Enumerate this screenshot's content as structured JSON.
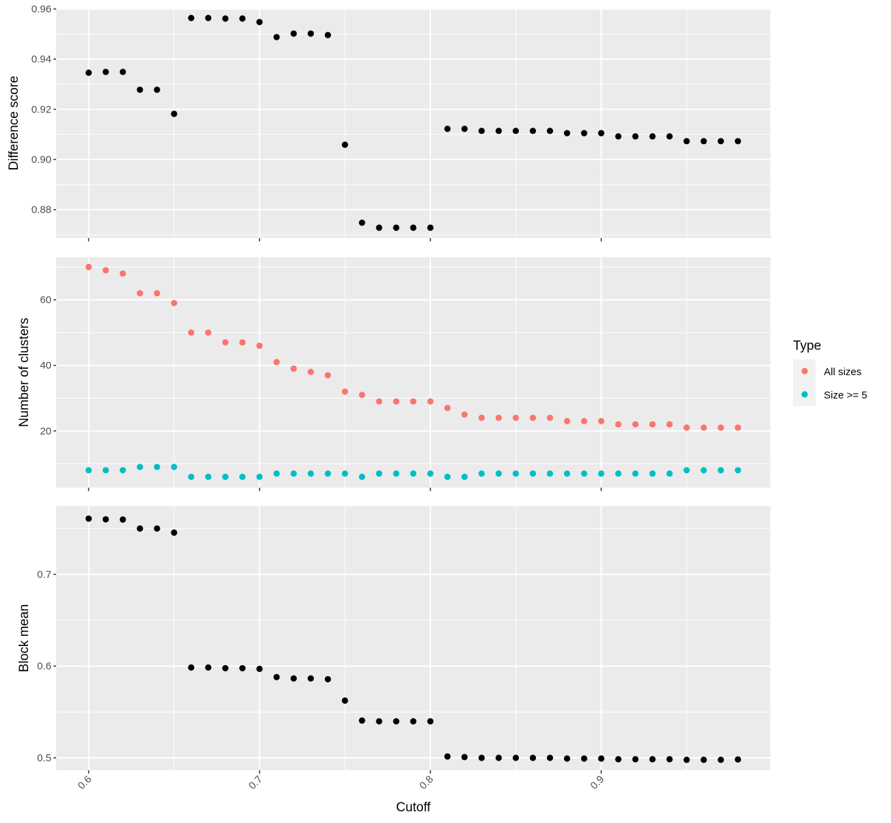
{
  "chart_data": {
    "type": "scatter",
    "layout": "three vertically stacked facet panels sharing x axis",
    "x": [
      0.6,
      0.61,
      0.62,
      0.63,
      0.64,
      0.65,
      0.66,
      0.67,
      0.68,
      0.69,
      0.7,
      0.71,
      0.72,
      0.73,
      0.74,
      0.75,
      0.76,
      0.77,
      0.78,
      0.79,
      0.8,
      0.81,
      0.82,
      0.83,
      0.84,
      0.85,
      0.86,
      0.87,
      0.88,
      0.89,
      0.9,
      0.91,
      0.92,
      0.93,
      0.94,
      0.95,
      0.96,
      0.97,
      0.98
    ],
    "xlabel": "Cutoff",
    "xlim": [
      0.581,
      0.999
    ],
    "xticks": [
      0.6,
      0.7,
      0.8,
      0.9
    ],
    "xtick_labels": [
      "0.6",
      "0.7",
      "0.8",
      "0.9"
    ],
    "xtick_label_rotation_deg": 45,
    "grid": true,
    "background": "#EBEBEB",
    "panels": [
      {
        "id": "difference-score",
        "ylabel": "Difference score",
        "ylim": [
          0.8687,
          0.9603
        ],
        "yticks": [
          0.88,
          0.9,
          0.92,
          0.94,
          0.96
        ],
        "ytick_labels": [
          "0.88",
          "0.90",
          "0.92",
          "0.94",
          "0.96"
        ],
        "series": [
          {
            "name": "Difference score",
            "color": "#000000",
            "values": [
              0.9346,
              0.9349,
              0.9349,
              0.9278,
              0.9278,
              0.9182,
              0.9564,
              0.9564,
              0.9562,
              0.9562,
              0.9548,
              0.9488,
              0.9502,
              0.9502,
              0.9496,
              0.9059,
              0.8748,
              0.8728,
              0.8728,
              0.8728,
              0.8728,
              0.9122,
              0.9122,
              0.9114,
              0.9114,
              0.9114,
              0.9114,
              0.9114,
              0.9105,
              0.9105,
              0.9105,
              0.9092,
              0.9092,
              0.9092,
              0.9092,
              0.9073,
              0.9073,
              0.9073,
              0.9073
            ]
          }
        ]
      },
      {
        "id": "number-of-clusters",
        "ylabel": "Number of clusters",
        "ylim": [
          2.7,
          73
        ],
        "yticks": [
          20,
          40,
          60
        ],
        "ytick_labels": [
          "20",
          "40",
          "60"
        ],
        "series": [
          {
            "name": "All sizes",
            "color": "#F8766D",
            "values": [
              70,
              69,
              68,
              62,
              62,
              59,
              50,
              50,
              47,
              47,
              46,
              41,
              39,
              38,
              37,
              32,
              31,
              29,
              29,
              29,
              29,
              27,
              25,
              24,
              24,
              24,
              24,
              24,
              23,
              23,
              23,
              22,
              22,
              22,
              22,
              21,
              21,
              21,
              21
            ]
          },
          {
            "name": "Size >= 5",
            "color": "#00BFC4",
            "values": [
              8,
              8,
              8,
              9,
              9,
              9,
              6,
              6,
              6,
              6,
              6,
              7,
              7,
              7,
              7,
              7,
              6,
              7,
              7,
              7,
              7,
              6,
              6,
              7,
              7,
              7,
              7,
              7,
              7,
              7,
              7,
              7,
              7,
              7,
              7,
              8,
              8,
              8,
              8
            ]
          }
        ]
      },
      {
        "id": "block-mean",
        "ylabel": "Block mean",
        "ylim": [
          0.4865,
          0.7744
        ],
        "yticks": [
          0.5,
          0.6,
          0.7
        ],
        "ytick_labels": [
          "0.5",
          "0.6",
          "0.7"
        ],
        "series": [
          {
            "name": "Block mean",
            "color": "#000000",
            "values": [
              0.7608,
              0.76,
              0.7598,
              0.75,
              0.75,
              0.7455,
              0.5985,
              0.5985,
              0.5977,
              0.5977,
              0.597,
              0.588,
              0.5865,
              0.5865,
              0.5857,
              0.5624,
              0.5406,
              0.5398,
              0.5398,
              0.5398,
              0.5398,
              0.5015,
              0.5008,
              0.5,
              0.5,
              0.5,
              0.5,
              0.5,
              0.4992,
              0.4992,
              0.4992,
              0.4985,
              0.4985,
              0.4985,
              0.4985,
              0.4978,
              0.4978,
              0.4978,
              0.4982
            ]
          }
        ]
      }
    ],
    "legend": {
      "title": "Type",
      "placement": "right",
      "entries": [
        {
          "label": "All sizes",
          "color": "#F8766D"
        },
        {
          "label": "Size >= 5",
          "color": "#00BFC4"
        }
      ]
    }
  }
}
